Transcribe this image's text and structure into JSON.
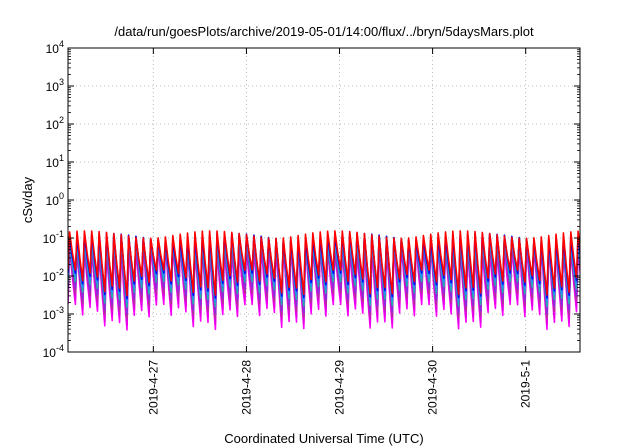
{
  "chart_data": {
    "type": "line",
    "title": "/data/run/goesPlots/archive/2019-05-01/14:00/flux/../bryn/5daysMars.plot",
    "xlabel": "Coordinated Universal Time (UTC)",
    "ylabel": "cSv/day",
    "yscale": "log",
    "ylim": [
      0.0001,
      10000
    ],
    "xlim": [
      "2019-04-26 02:00",
      "2019-05-01 14:00"
    ],
    "y_ticks": [
      {
        "base": "10",
        "exp": "-4",
        "value": 0.0001
      },
      {
        "base": "10",
        "exp": "-3",
        "value": 0.001
      },
      {
        "base": "10",
        "exp": "-2",
        "value": 0.01
      },
      {
        "base": "10",
        "exp": "-1",
        "value": 0.1
      },
      {
        "base": "10",
        "exp": "0",
        "value": 1
      },
      {
        "base": "10",
        "exp": "1",
        "value": 10
      },
      {
        "base": "10",
        "exp": "2",
        "value": 100
      },
      {
        "base": "10",
        "exp": "3",
        "value": 1000
      },
      {
        "base": "10",
        "exp": "4",
        "value": 10000
      }
    ],
    "x_ticks": [
      {
        "label": "2019-4-27",
        "value": "2019-04-27"
      },
      {
        "label": "2019-4-28",
        "value": "2019-04-28"
      },
      {
        "label": "2019-4-29",
        "value": "2019-04-29"
      },
      {
        "label": "2019-4-30",
        "value": "2019-04-30"
      },
      {
        "label": "2019-5-1",
        "value": "2019-05-01"
      }
    ],
    "grid": true,
    "legend": "none",
    "sawtooth_period_hours": 1.9,
    "series": [
      {
        "color": "#ff00ff",
        "peak": 0.06,
        "trough": 0.0015
      },
      {
        "color": "#e400e4",
        "peak": 0.07,
        "trough": 0.002
      },
      {
        "color": "#b0309a",
        "peak": 0.08,
        "trough": 0.003
      },
      {
        "color": "#8a2be2",
        "peak": 0.09,
        "trough": 0.004
      },
      {
        "color": "#20b2aa",
        "peak": 0.1,
        "trough": 0.006
      },
      {
        "color": "#1e90ff",
        "peak": 0.11,
        "trough": 0.008
      },
      {
        "color": "#0000ff",
        "peak": 0.12,
        "trough": 0.01
      },
      {
        "color": "#ff0000",
        "peak": 0.14,
        "trough": 0.012
      }
    ]
  }
}
